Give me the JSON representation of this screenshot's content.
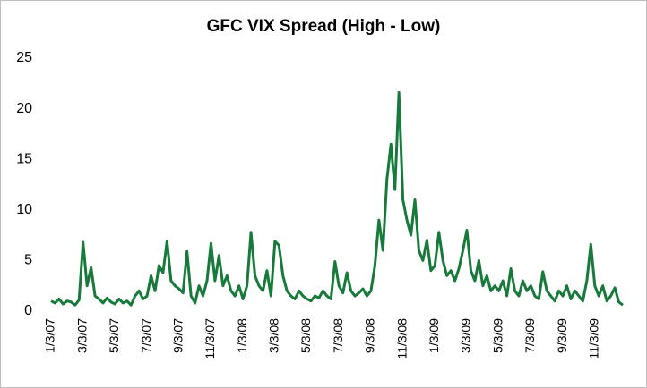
{
  "chart_data": {
    "type": "line",
    "title": "GFC VIX Spread (High - Low)",
    "categories": [
      "1/3/07",
      null,
      null,
      null,
      null,
      null,
      null,
      null,
      "3/3/07",
      null,
      null,
      null,
      null,
      null,
      null,
      null,
      "5/3/07",
      null,
      null,
      null,
      null,
      null,
      null,
      null,
      "7/3/07",
      null,
      null,
      null,
      null,
      null,
      null,
      null,
      "9/3/07",
      null,
      null,
      null,
      null,
      null,
      null,
      null,
      "11/3/07",
      null,
      null,
      null,
      null,
      null,
      null,
      null,
      "1/3/08",
      null,
      null,
      null,
      null,
      null,
      null,
      null,
      "3/3/08",
      null,
      null,
      null,
      null,
      null,
      null,
      null,
      "5/3/08",
      null,
      null,
      null,
      null,
      null,
      null,
      null,
      "7/3/08",
      null,
      null,
      null,
      null,
      null,
      null,
      null,
      "9/3/08",
      null,
      null,
      null,
      null,
      null,
      null,
      null,
      "11/3/08",
      null,
      null,
      null,
      null,
      null,
      null,
      null,
      "1/3/09",
      null,
      null,
      null,
      null,
      null,
      null,
      null,
      "3/3/09",
      null,
      null,
      null,
      null,
      null,
      null,
      null,
      "5/3/09",
      null,
      null,
      null,
      null,
      null,
      null,
      null,
      "7/3/09",
      null,
      null,
      null,
      null,
      null,
      null,
      null,
      "9/3/09",
      null,
      null,
      null,
      null,
      null,
      null,
      null,
      "11/3/09",
      null,
      null,
      null,
      null,
      null,
      null,
      null
    ],
    "series": [
      {
        "name": "VIX Spread",
        "color": "#177a3a",
        "values": [
          1,
          0.8,
          1.2,
          0.7,
          1,
          0.9,
          0.6,
          1.1,
          6.8,
          2.5,
          4.3,
          1.5,
          1.2,
          0.8,
          1.3,
          0.9,
          0.7,
          1.2,
          0.8,
          1,
          0.6,
          1.5,
          2,
          1.2,
          1.5,
          3.5,
          2,
          4.5,
          3.8,
          6.9,
          3,
          2.5,
          2.2,
          1.8,
          5.9,
          1.5,
          0.8,
          2.5,
          1.5,
          3,
          6.7,
          3,
          5.5,
          2.5,
          3.5,
          2,
          1.5,
          2.5,
          1.2,
          2.5,
          7.8,
          3.5,
          2.5,
          2,
          4,
          1.5,
          6.9,
          6.5,
          3.5,
          2,
          1.5,
          1.2,
          2,
          1.5,
          1.2,
          1,
          1.5,
          1.3,
          2,
          1.5,
          1.2,
          4.9,
          2.5,
          1.8,
          3.8,
          2,
          1.5,
          1.8,
          2.2,
          1.5,
          2,
          4.5,
          9,
          6,
          13,
          16.5,
          12,
          21.6,
          11,
          9,
          7.5,
          11,
          6,
          5,
          7,
          4,
          4.5,
          7.8,
          5,
          3.5,
          4,
          3,
          4.2,
          6,
          8,
          4,
          3,
          5,
          2.5,
          3.5,
          2,
          2.5,
          2,
          3,
          1.5,
          4.2,
          2,
          1.5,
          3,
          2,
          2.5,
          1.5,
          1.2,
          3.9,
          2,
          1.5,
          1,
          2,
          1.5,
          2.5,
          1.2,
          2,
          1.5,
          1,
          3,
          6.6,
          2.5,
          1.5,
          2.5,
          1,
          1.5,
          2.3,
          0.9,
          0.6
        ]
      }
    ],
    "ylim": [
      0,
      25
    ],
    "yticks": [
      0,
      5,
      10,
      15,
      20,
      25
    ]
  }
}
